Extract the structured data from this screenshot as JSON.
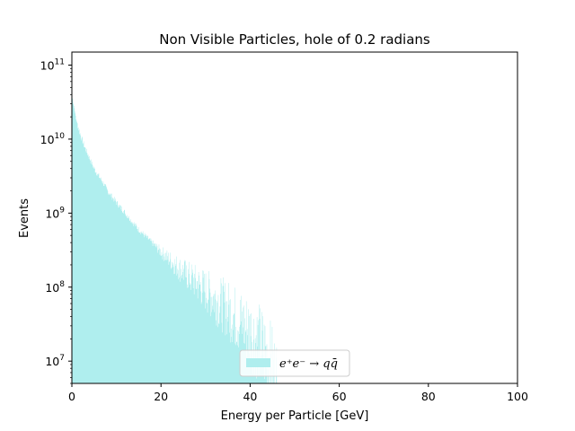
{
  "chart_data": {
    "type": "bar",
    "title": "Non Visible Particles, hole of 0.2 radians",
    "xlabel": "Energy per Particle [GeV]",
    "ylabel": "Events",
    "xlim": [
      0,
      100
    ],
    "ylim": [
      5000000,
      150000000000
    ],
    "yscale": "log",
    "grid": false,
    "legend_position": "lower center",
    "x_ticks": [
      0,
      20,
      40,
      60,
      80,
      100
    ],
    "y_tick_labels": [
      {
        "base": "10",
        "exp": "7",
        "value": 10000000
      },
      {
        "base": "10",
        "exp": "8",
        "value": 100000000
      },
      {
        "base": "10",
        "exp": "9",
        "value": 1000000000
      },
      {
        "base": "10",
        "exp": "10",
        "value": 10000000000
      },
      {
        "base": "10",
        "exp": "11",
        "value": 100000000000
      }
    ],
    "series": [
      {
        "name": "e⁺e⁻ → qq̄",
        "color": "#afeeee",
        "bin_width": 0.1,
        "envelope": [
          {
            "x": 0.2,
            "y": 35000000000
          },
          {
            "x": 1,
            "y": 18000000000
          },
          {
            "x": 2,
            "y": 11000000000
          },
          {
            "x": 3,
            "y": 7500000000
          },
          {
            "x": 4,
            "y": 5500000000
          },
          {
            "x": 5,
            "y": 4000000000
          },
          {
            "x": 6,
            "y": 3200000000
          },
          {
            "x": 7,
            "y": 2600000000
          },
          {
            "x": 8,
            "y": 2000000000
          },
          {
            "x": 10,
            "y": 1400000000
          },
          {
            "x": 12,
            "y": 1000000000
          },
          {
            "x": 15,
            "y": 600000000
          },
          {
            "x": 18,
            "y": 400000000
          },
          {
            "x": 20,
            "y": 300000000
          },
          {
            "x": 25,
            "y": 160000000
          },
          {
            "x": 30,
            "y": 90000000
          },
          {
            "x": 35,
            "y": 50000000
          },
          {
            "x": 40,
            "y": 25000000
          },
          {
            "x": 43,
            "y": 15000000
          },
          {
            "x": 45,
            "y": 8000000
          },
          {
            "x": 46,
            "y": 5000000
          }
        ]
      }
    ]
  }
}
